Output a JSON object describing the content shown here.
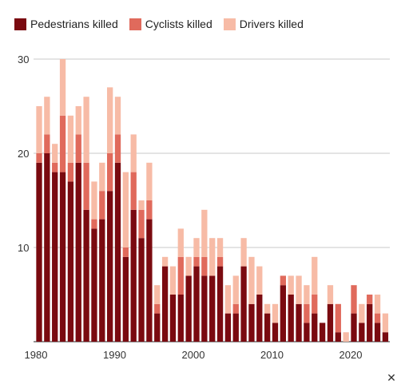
{
  "legend": [
    {
      "label": "Pedestrians killed",
      "color": "#7a0a10"
    },
    {
      "label": "Cyclists killed",
      "color": "#e06a5c"
    },
    {
      "label": "Drivers killed",
      "color": "#f7bba6"
    }
  ],
  "close_icon": "close-icon",
  "chart_data": {
    "type": "bar",
    "stacked": true,
    "grid": true,
    "ylim": [
      0,
      30
    ],
    "yticks": [
      10,
      20,
      30
    ],
    "xtick_labels": [
      "1980",
      "1990",
      "2000",
      "2010",
      "2020"
    ],
    "years": [
      1980,
      1981,
      1982,
      1983,
      1984,
      1985,
      1986,
      1987,
      1988,
      1989,
      1990,
      1991,
      1992,
      1993,
      1994,
      1995,
      1996,
      1997,
      1998,
      1999,
      2000,
      2001,
      2002,
      2003,
      2004,
      2005,
      2006,
      2007,
      2008,
      2009,
      2010,
      2011,
      2012,
      2013,
      2014,
      2015,
      2016,
      2017,
      2018,
      2019,
      2020,
      2021,
      2022,
      2023,
      2024
    ],
    "series": [
      {
        "name": "Pedestrians killed",
        "color": "#7a0a10",
        "values": [
          19,
          20,
          18,
          18,
          17,
          19,
          14,
          12,
          13,
          16,
          19,
          9,
          14,
          11,
          13,
          3,
          8,
          5,
          5,
          7,
          8,
          7,
          7,
          8,
          3,
          3,
          8,
          4,
          5,
          3,
          2,
          6,
          5,
          4,
          2,
          3,
          2,
          4,
          1,
          0,
          3,
          2,
          4,
          2,
          1
        ]
      },
      {
        "name": "Cyclists killed",
        "color": "#e06a5c",
        "values": [
          1,
          2,
          1,
          6,
          2,
          3,
          5,
          1,
          3,
          4,
          3,
          1,
          4,
          3,
          2,
          1,
          0,
          0,
          4,
          0,
          1,
          2,
          0,
          1,
          0,
          1,
          0,
          0,
          0,
          0,
          0,
          1,
          0,
          0,
          2,
          2,
          0,
          0,
          3,
          0,
          3,
          0,
          1,
          1,
          0
        ]
      },
      {
        "name": "Drivers killed",
        "color": "#f7bba6",
        "values": [
          5,
          4,
          2,
          6,
          5,
          3,
          7,
          4,
          3,
          7,
          4,
          8,
          4,
          1,
          4,
          2,
          1,
          3,
          3,
          2,
          2,
          5,
          4,
          2,
          3,
          3,
          3,
          5,
          3,
          1,
          2,
          0,
          2,
          3,
          2,
          4,
          0,
          2,
          0,
          1,
          0,
          2,
          0,
          2,
          2
        ]
      }
    ]
  }
}
